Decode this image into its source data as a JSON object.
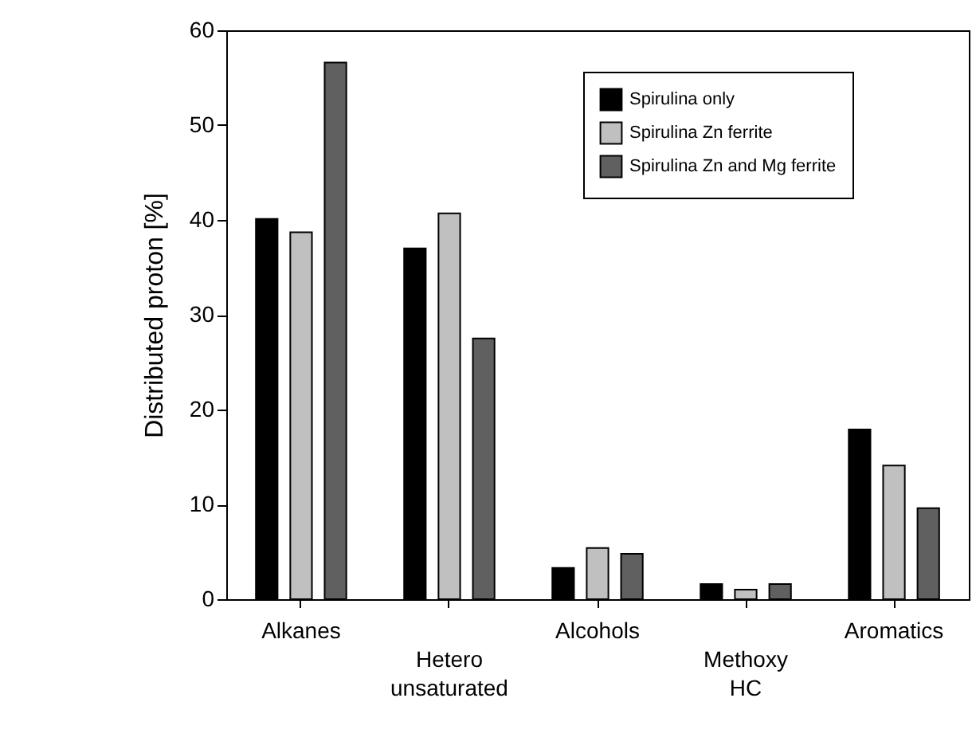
{
  "chart_data": {
    "type": "bar",
    "ylabel": "Distributed proton   [%]",
    "categories": [
      "Alkanes",
      "Hetero unsaturated",
      "Alcohols",
      "Methoxy HC",
      "Aromatics"
    ],
    "series": [
      {
        "name": "Spirulina only",
        "color": "#000000",
        "values": [
          40.1,
          37.0,
          3.3,
          1.6,
          17.9
        ]
      },
      {
        "name": "Spirulina Zn ferrite",
        "color": "#c0c0c0",
        "values": [
          38.7,
          40.7,
          5.4,
          1.0,
          14.1
        ]
      },
      {
        "name": "Spirulina Zn and Mg ferrite",
        "color": "#606060",
        "values": [
          56.6,
          27.5,
          4.8,
          1.6,
          9.6
        ]
      }
    ],
    "ylim": [
      0,
      60
    ],
    "yticks": [
      0,
      10,
      20,
      30,
      40,
      50,
      60
    ],
    "grid": false,
    "legend": "top right"
  }
}
